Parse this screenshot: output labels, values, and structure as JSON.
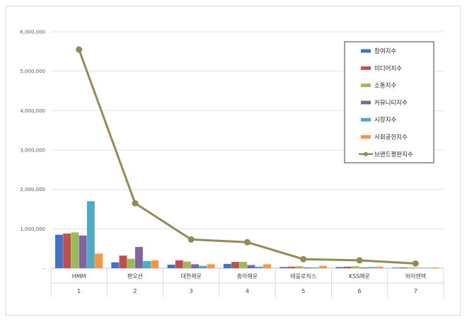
{
  "chart_data": {
    "type": "bar",
    "categories": [
      "HMM",
      "팬오션",
      "대한해운",
      "흥아해운",
      "태웅로직스",
      "KSS해운",
      "와이엔텍"
    ],
    "category_index": [
      "1",
      "2",
      "3",
      "4",
      "5",
      "6",
      "7"
    ],
    "yticks": [
      "-",
      "1,000,000",
      "2,000,000",
      "3,000,000",
      "4,000,000",
      "5,000,000",
      "6,000,000"
    ],
    "ylim": [
      0,
      6000000
    ],
    "grid": true,
    "legend_position": "top-right",
    "series": [
      {
        "name": "참여지수",
        "kind": "bar",
        "color": "#4472c4",
        "values": [
          850000,
          150000,
          90000,
          110000,
          30000,
          30000,
          15000
        ]
      },
      {
        "name": "미디어지수",
        "kind": "bar",
        "color": "#c0504d",
        "values": [
          880000,
          320000,
          200000,
          160000,
          40000,
          40000,
          20000
        ]
      },
      {
        "name": "소통지수",
        "kind": "bar",
        "color": "#9bbb59",
        "values": [
          910000,
          240000,
          170000,
          160000,
          50000,
          50000,
          20000
        ]
      },
      {
        "name": "커뮤니티지수",
        "kind": "bar",
        "color": "#8064a2",
        "values": [
          830000,
          540000,
          100000,
          80000,
          20000,
          20000,
          10000
        ]
      },
      {
        "name": "시장지수",
        "kind": "bar",
        "color": "#4bacc6",
        "values": [
          1700000,
          180000,
          60000,
          40000,
          20000,
          30000,
          10000
        ]
      },
      {
        "name": "사회공헌지수",
        "kind": "bar",
        "color": "#f79646",
        "values": [
          370000,
          200000,
          100000,
          100000,
          60000,
          40000,
          20000
        ]
      },
      {
        "name": "브랜드평판지수",
        "kind": "line",
        "color": "#948a54",
        "values": [
          5550000,
          1650000,
          730000,
          660000,
          230000,
          200000,
          120000
        ]
      }
    ]
  }
}
